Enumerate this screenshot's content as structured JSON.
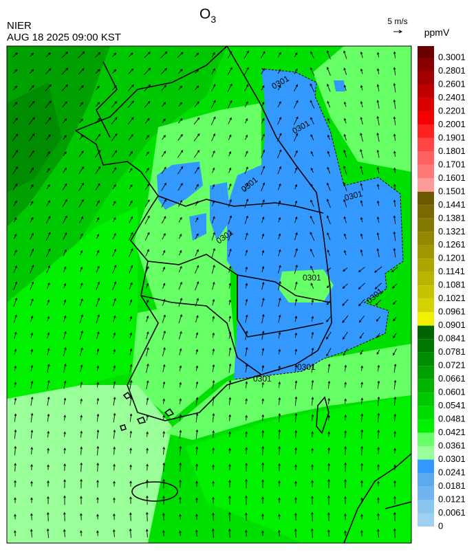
{
  "header": {
    "title": "O",
    "title_subscript": "3",
    "agency": "NIER",
    "datetime": "AUG 18 2025 09:00 KST"
  },
  "wind_reference": {
    "label": "5 m/s"
  },
  "colorbar": {
    "unit": "ppmV",
    "levels": [
      0.3001,
      0.2801,
      0.2601,
      0.2401,
      0.2201,
      0.2001,
      0.1901,
      0.1801,
      0.1701,
      0.1601,
      0.1501,
      0.1441,
      0.1381,
      0.1321,
      0.1261,
      0.1201,
      0.1141,
      0.1081,
      0.1021,
      0.0961,
      0.0901,
      0.0841,
      0.0781,
      0.0721,
      0.0661,
      0.0601,
      0.0541,
      0.0481,
      0.0421,
      0.0361,
      0.0301,
      0.0241,
      0.0181,
      0.0121,
      0.0061,
      0
    ],
    "colors": [
      "#6b0000",
      "#890000",
      "#a50000",
      "#c00000",
      "#dc0000",
      "#f50000",
      "#ff2020",
      "#ff4545",
      "#ff6060",
      "#ff7878",
      "#ff9a9a",
      "#6b5a00",
      "#786a00",
      "#857a00",
      "#928800",
      "#a09700",
      "#aca600",
      "#b9b400",
      "#c6c300",
      "#d4d200",
      "#f0f000",
      "#006400",
      "#007800",
      "#008c00",
      "#00a000",
      "#00b400",
      "#00c800",
      "#00dc00",
      "#00f000",
      "#66ff66",
      "#99ff99",
      "#3399ff",
      "#5aaaf0",
      "#70b5f0",
      "#88c5f0",
      "#a0d0f0"
    ]
  },
  "contour_labels": [
    "0301",
    "0301",
    "0301",
    "0301",
    "0301",
    "0301",
    "0301",
    "0301",
    "0301"
  ]
}
